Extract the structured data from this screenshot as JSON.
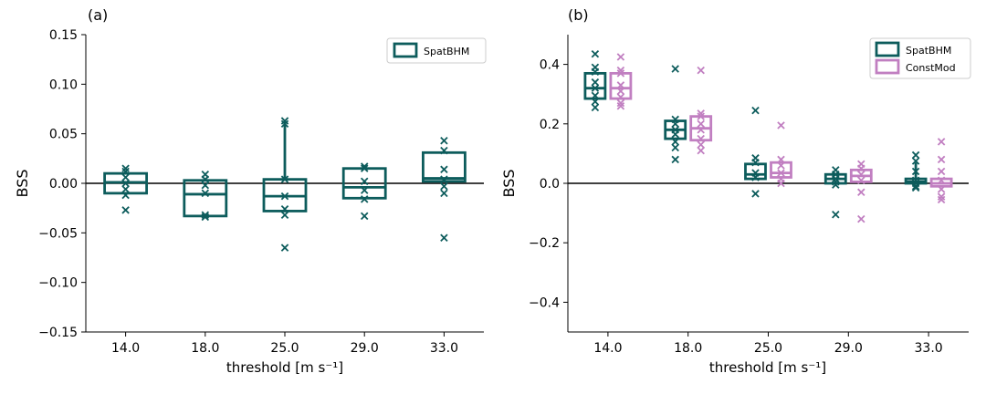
{
  "colors": {
    "spat": "#0d5c5c",
    "const": "#c17fc1",
    "axis": "#000000",
    "zero": "#000000"
  },
  "chart_data": [
    {
      "type": "box",
      "panel_label": "(a)",
      "xlabel": "threshold  [m s⁻¹]",
      "ylabel": "BSS",
      "categories": [
        "14.0",
        "18.0",
        "25.0",
        "29.0",
        "33.0"
      ],
      "ylim": [
        -0.15,
        0.15
      ],
      "yticks": [
        -0.15,
        -0.1,
        -0.05,
        0.0,
        0.05,
        0.1,
        0.15
      ],
      "ytick_labels": [
        "−0.15",
        "−0.10",
        "−0.05",
        "0.00",
        "0.05",
        "0.10",
        "0.15"
      ],
      "legend": {
        "placement": "top-right",
        "entries": [
          "SpatBHM"
        ]
      },
      "series": [
        {
          "name": "SpatBHM",
          "color_key": "spat",
          "boxes": [
            {
              "q1": -0.01,
              "median": 0.001,
              "q3": 0.01,
              "whisker_low": -0.01,
              "whisker_high": 0.01,
              "points": [
                0.015,
                0.012,
                0.006,
                0.0,
                -0.006,
                -0.012,
                -0.027
              ]
            },
            {
              "q1": -0.033,
              "median": -0.011,
              "q3": 0.003,
              "whisker_low": -0.033,
              "whisker_high": 0.003,
              "points": [
                0.009,
                0.004,
                -0.002,
                -0.01,
                -0.032,
                -0.034
              ]
            },
            {
              "q1": -0.028,
              "median": -0.013,
              "q3": 0.004,
              "whisker_low": -0.028,
              "whisker_high": 0.062,
              "points": [
                0.063,
                0.06,
                0.004,
                -0.013,
                -0.026,
                -0.032,
                -0.065
              ]
            },
            {
              "q1": -0.015,
              "median": -0.004,
              "q3": 0.015,
              "whisker_low": -0.015,
              "whisker_high": 0.015,
              "points": [
                0.017,
                0.015,
                0.002,
                -0.007,
                -0.016,
                -0.033
              ]
            },
            {
              "q1": 0.002,
              "median": 0.005,
              "q3": 0.031,
              "whisker_low": 0.002,
              "whisker_high": 0.031,
              "points": [
                0.043,
                0.033,
                0.014,
                0.004,
                -0.003,
                -0.01,
                -0.055
              ]
            }
          ]
        }
      ]
    },
    {
      "type": "box",
      "panel_label": "(b)",
      "xlabel": "threshold  [m s⁻¹]",
      "ylabel": "BSS",
      "categories": [
        "14.0",
        "18.0",
        "25.0",
        "29.0",
        "33.0"
      ],
      "ylim": [
        -0.5,
        0.5
      ],
      "yticks": [
        -0.4,
        -0.2,
        0.0,
        0.2,
        0.4
      ],
      "ytick_labels": [
        "−0.4",
        "−0.2",
        "0.0",
        "0.2",
        "0.4"
      ],
      "legend": {
        "placement": "top-right",
        "entries": [
          "SpatBHM",
          "ConstMod"
        ]
      },
      "series": [
        {
          "name": "SpatBHM",
          "color_key": "spat",
          "boxes": [
            {
              "q1": 0.285,
              "median": 0.32,
              "q3": 0.37,
              "whisker_low": 0.285,
              "whisker_high": 0.37,
              "points": [
                0.435,
                0.39,
                0.375,
                0.34,
                0.32,
                0.295,
                0.275,
                0.255
              ]
            },
            {
              "q1": 0.15,
              "median": 0.18,
              "q3": 0.21,
              "whisker_low": 0.15,
              "whisker_high": 0.21,
              "points": [
                0.385,
                0.215,
                0.2,
                0.18,
                0.165,
                0.14,
                0.12,
                0.08
              ]
            },
            {
              "q1": 0.015,
              "median": 0.03,
              "q3": 0.065,
              "whisker_low": 0.015,
              "whisker_high": 0.065,
              "points": [
                0.245,
                0.085,
                0.07,
                0.035,
                0.02,
                -0.035
              ]
            },
            {
              "q1": 0.0,
              "median": 0.015,
              "q3": 0.03,
              "whisker_low": 0.0,
              "whisker_high": 0.03,
              "points": [
                0.045,
                0.03,
                0.015,
                0.005,
                -0.005,
                -0.105
              ]
            },
            {
              "q1": 0.0,
              "median": 0.005,
              "q3": 0.015,
              "whisker_low": 0.0,
              "whisker_high": 0.07,
              "points": [
                0.095,
                0.075,
                0.04,
                0.01,
                0.0,
                -0.01,
                -0.015
              ]
            }
          ]
        },
        {
          "name": "ConstMod",
          "color_key": "const",
          "boxes": [
            {
              "q1": 0.285,
              "median": 0.32,
              "q3": 0.37,
              "whisker_low": 0.285,
              "whisker_high": 0.37,
              "points": [
                0.425,
                0.38,
                0.37,
                0.33,
                0.31,
                0.29,
                0.27,
                0.26
              ]
            },
            {
              "q1": 0.145,
              "median": 0.185,
              "q3": 0.225,
              "whisker_low": 0.145,
              "whisker_high": 0.225,
              "points": [
                0.38,
                0.235,
                0.225,
                0.2,
                0.18,
                0.15,
                0.13,
                0.11
              ]
            },
            {
              "q1": 0.02,
              "median": 0.035,
              "q3": 0.07,
              "whisker_low": 0.02,
              "whisker_high": 0.07,
              "points": [
                0.195,
                0.08,
                0.06,
                0.035,
                0.015,
                0.0
              ]
            },
            {
              "q1": 0.005,
              "median": 0.025,
              "q3": 0.045,
              "whisker_low": 0.005,
              "whisker_high": 0.045,
              "points": [
                0.065,
                0.05,
                0.03,
                0.01,
                -0.03,
                -0.12
              ]
            },
            {
              "q1": -0.01,
              "median": 0.0,
              "q3": 0.015,
              "whisker_low": -0.01,
              "whisker_high": 0.015,
              "points": [
                0.14,
                0.08,
                0.04,
                0.01,
                -0.02,
                -0.045,
                -0.055
              ]
            }
          ]
        }
      ]
    }
  ]
}
